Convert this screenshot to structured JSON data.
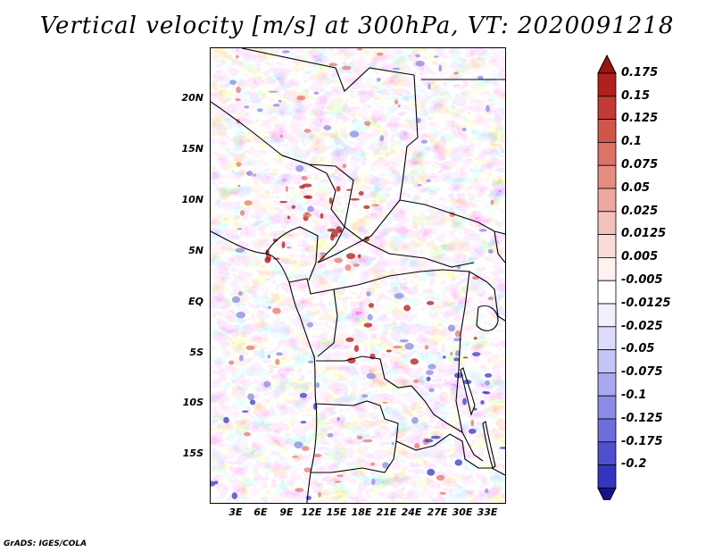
{
  "title": "Vertical velocity [m/s] at 300hPa, VT: 2020091218",
  "credit": "GrADS: IGES/COLA",
  "lat_labels": [
    "20N",
    "15N",
    "10N",
    "5N",
    "EQ",
    "5S",
    "10S",
    "15S"
  ],
  "lon_labels": [
    "3E",
    "6E",
    "9E",
    "12E",
    "15E",
    "18E",
    "21E",
    "24E",
    "27E",
    "30E",
    "33E"
  ],
  "colorbar": {
    "labels": [
      "0.175",
      "0.15",
      "0.125",
      "0.1",
      "0.075",
      "0.05",
      "0.025",
      "0.0125",
      "0.005",
      "-0.005",
      "-0.0125",
      "-0.025",
      "-0.05",
      "-0.075",
      "-0.1",
      "-0.125",
      "-0.175",
      "-0.2"
    ],
    "colors": [
      "#b0201f",
      "#c23a35",
      "#d0564c",
      "#dd7267",
      "#e68c82",
      "#ee a89f",
      "#f3c2bb",
      "#f9dcd8",
      "#fdf2f0",
      "#f1f1fd",
      "#dcdcfa",
      "#c4c4f5",
      "#a8a8ee",
      "#8c8ce6",
      "#6e6edb",
      "#5050cf",
      "#3535c0",
      "#1e1eaa"
    ]
  },
  "field_colors": {
    "positive_strong": "#b01818",
    "positive_mid": "#e07a72",
    "positive_weak": "#f4b4ac",
    "neutral": "#ffffff",
    "negative_weak": "#bcbcf0",
    "negative_mid": "#8a8ae2",
    "negative_strong": "#3a3ac0"
  }
}
